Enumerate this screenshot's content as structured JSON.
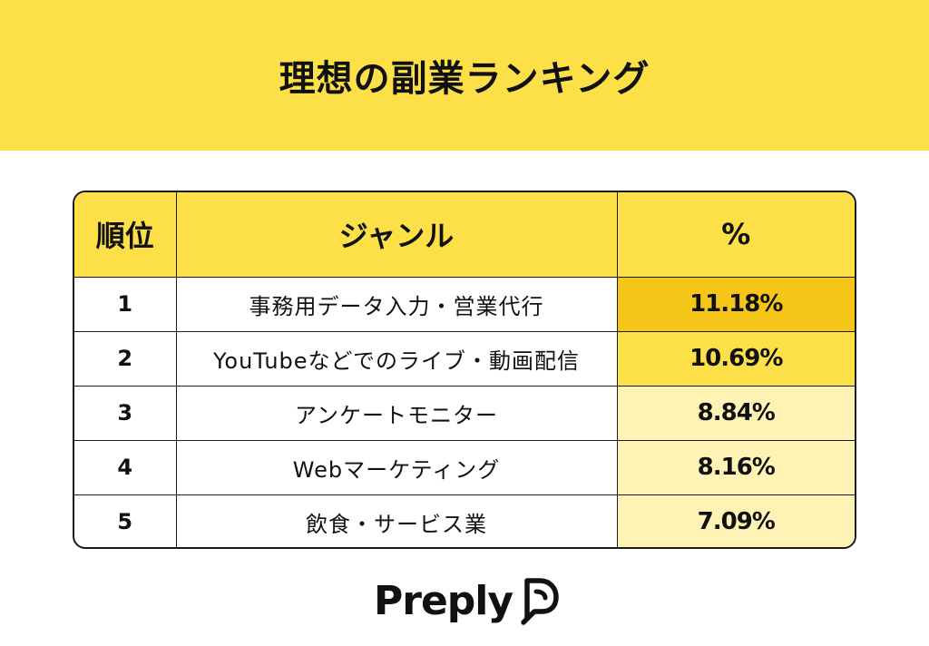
{
  "header": {
    "title": "理想の副業ランキング"
  },
  "chart_data": {
    "type": "table",
    "columns": [
      "順位",
      "ジャンル",
      "%"
    ],
    "rows": [
      {
        "rank": "1",
        "genre": "事務用データ入力・営業代行",
        "percent": "11.18%",
        "value": 11.18
      },
      {
        "rank": "2",
        "genre": "YouTubeなどでのライブ・動画配信",
        "percent": "10.69%",
        "value": 10.69
      },
      {
        "rank": "3",
        "genre": "アンケートモニター",
        "percent": "8.84%",
        "value": 8.84
      },
      {
        "rank": "4",
        "genre": "Webマーケティング",
        "percent": "8.16%",
        "value": 8.16
      },
      {
        "rank": "5",
        "genre": "飲食・サービス業",
        "percent": "7.09%",
        "value": 7.09
      }
    ],
    "colors": {
      "header": "#fde047",
      "high": "#f5c518",
      "low": "#fef3b4"
    }
  },
  "brand": {
    "name": "Preply",
    "icon": "preply-logo-icon"
  }
}
